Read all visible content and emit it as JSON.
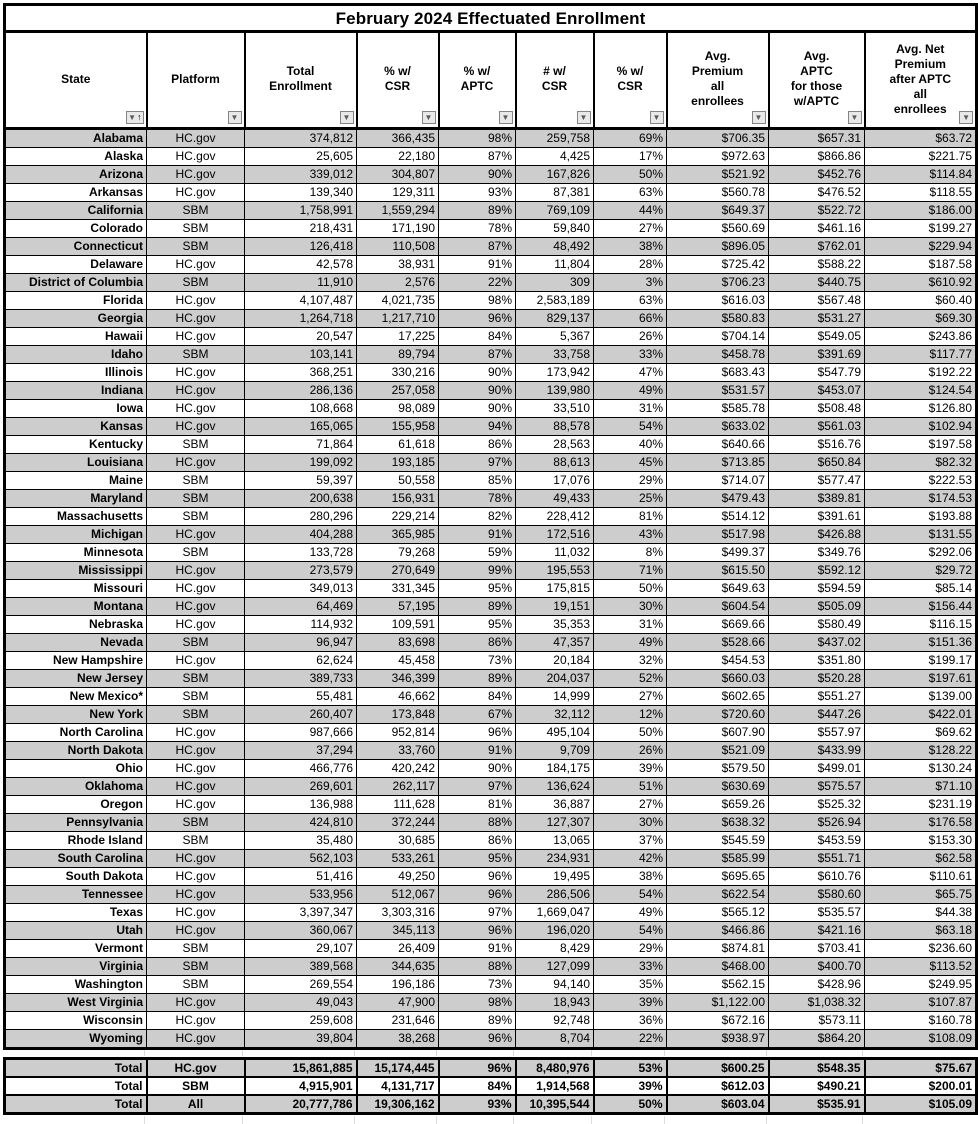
{
  "title": "February 2024 Effectuated Enrollment",
  "icons": {
    "filter_arrow": "▼",
    "sort_ascending": "↑"
  },
  "colors": {
    "row_stripe": "#cdcdcd",
    "border": "#000000",
    "filter_button_bg": "#e9e9e9"
  },
  "table": {
    "columns": [
      {
        "key": "state",
        "label": "State",
        "lines": [
          "State"
        ],
        "filter": "sort-asc"
      },
      {
        "key": "platform",
        "label": "Platform",
        "lines": [
          "Platform"
        ],
        "filter": "default"
      },
      {
        "key": "total-enrollment",
        "label": "Total Enrollment",
        "lines": [
          "Total",
          "Enrollment"
        ],
        "filter": "default"
      },
      {
        "key": "num-w-csr-a",
        "label": "% w/ CSR",
        "lines": [
          "% w/",
          "CSR"
        ],
        "filter": "default"
      },
      {
        "key": "pct-w-aptc",
        "label": "% w/ APTC",
        "lines": [
          "% w/",
          "APTC"
        ],
        "filter": "default"
      },
      {
        "key": "num-w-csr-b",
        "label": "# w/ CSR",
        "lines": [
          "# w/",
          "CSR"
        ],
        "filter": "default"
      },
      {
        "key": "pct-w-csr",
        "label": "% w/ CSR",
        "lines": [
          "% w/",
          "CSR"
        ],
        "filter": "default"
      },
      {
        "key": "avg-premium",
        "label": "Avg. Premium all enrollees",
        "lines": [
          "Avg.",
          "Premium",
          "all",
          "enrollees"
        ],
        "filter": "default"
      },
      {
        "key": "avg-aptc",
        "label": "Avg. APTC for those w/APTC",
        "lines": [
          "Avg.",
          "APTC",
          "for those",
          "w/APTC"
        ],
        "filter": "default"
      },
      {
        "key": "avg-net-premium",
        "label": "Avg. Net Premium after APTC all enrollees",
        "lines": [
          "Avg. Net",
          "Premium",
          "after APTC",
          "all",
          "enrollees"
        ],
        "filter": "default"
      }
    ],
    "rows": [
      [
        "Alabama",
        "HC.gov",
        "374,812",
        "366,435",
        "98%",
        "259,758",
        "69%",
        "$706.35",
        "$657.31",
        "$63.72"
      ],
      [
        "Alaska",
        "HC.gov",
        "25,605",
        "22,180",
        "87%",
        "4,425",
        "17%",
        "$972.63",
        "$866.86",
        "$221.75"
      ],
      [
        "Arizona",
        "HC.gov",
        "339,012",
        "304,807",
        "90%",
        "167,826",
        "50%",
        "$521.92",
        "$452.76",
        "$114.84"
      ],
      [
        "Arkansas",
        "HC.gov",
        "139,340",
        "129,311",
        "93%",
        "87,381",
        "63%",
        "$560.78",
        "$476.52",
        "$118.55"
      ],
      [
        "California",
        "SBM",
        "1,758,991",
        "1,559,294",
        "89%",
        "769,109",
        "44%",
        "$649.37",
        "$522.72",
        "$186.00"
      ],
      [
        "Colorado",
        "SBM",
        "218,431",
        "171,190",
        "78%",
        "59,840",
        "27%",
        "$560.69",
        "$461.16",
        "$199.27"
      ],
      [
        "Connecticut",
        "SBM",
        "126,418",
        "110,508",
        "87%",
        "48,492",
        "38%",
        "$896.05",
        "$762.01",
        "$229.94"
      ],
      [
        "Delaware",
        "HC.gov",
        "42,578",
        "38,931",
        "91%",
        "11,804",
        "28%",
        "$725.42",
        "$588.22",
        "$187.58"
      ],
      [
        "District of Columbia",
        "SBM",
        "11,910",
        "2,576",
        "22%",
        "309",
        "3%",
        "$706.23",
        "$440.75",
        "$610.92"
      ],
      [
        "Florida",
        "HC.gov",
        "4,107,487",
        "4,021,735",
        "98%",
        "2,583,189",
        "63%",
        "$616.03",
        "$567.48",
        "$60.40"
      ],
      [
        "Georgia",
        "HC.gov",
        "1,264,718",
        "1,217,710",
        "96%",
        "829,137",
        "66%",
        "$580.83",
        "$531.27",
        "$69.30"
      ],
      [
        "Hawaii",
        "HC.gov",
        "20,547",
        "17,225",
        "84%",
        "5,367",
        "26%",
        "$704.14",
        "$549.05",
        "$243.86"
      ],
      [
        "Idaho",
        "SBM",
        "103,141",
        "89,794",
        "87%",
        "33,758",
        "33%",
        "$458.78",
        "$391.69",
        "$117.77"
      ],
      [
        "Illinois",
        "HC.gov",
        "368,251",
        "330,216",
        "90%",
        "173,942",
        "47%",
        "$683.43",
        "$547.79",
        "$192.22"
      ],
      [
        "Indiana",
        "HC.gov",
        "286,136",
        "257,058",
        "90%",
        "139,980",
        "49%",
        "$531.57",
        "$453.07",
        "$124.54"
      ],
      [
        "Iowa",
        "HC.gov",
        "108,668",
        "98,089",
        "90%",
        "33,510",
        "31%",
        "$585.78",
        "$508.48",
        "$126.80"
      ],
      [
        "Kansas",
        "HC.gov",
        "165,065",
        "155,958",
        "94%",
        "88,578",
        "54%",
        "$633.02",
        "$561.03",
        "$102.94"
      ],
      [
        "Kentucky",
        "SBM",
        "71,864",
        "61,618",
        "86%",
        "28,563",
        "40%",
        "$640.66",
        "$516.76",
        "$197.58"
      ],
      [
        "Louisiana",
        "HC.gov",
        "199,092",
        "193,185",
        "97%",
        "88,613",
        "45%",
        "$713.85",
        "$650.84",
        "$82.32"
      ],
      [
        "Maine",
        "SBM",
        "59,397",
        "50,558",
        "85%",
        "17,076",
        "29%",
        "$714.07",
        "$577.47",
        "$222.53"
      ],
      [
        "Maryland",
        "SBM",
        "200,638",
        "156,931",
        "78%",
        "49,433",
        "25%",
        "$479.43",
        "$389.81",
        "$174.53"
      ],
      [
        "Massachusetts",
        "SBM",
        "280,296",
        "229,214",
        "82%",
        "228,412",
        "81%",
        "$514.12",
        "$391.61",
        "$193.88"
      ],
      [
        "Michigan",
        "HC.gov",
        "404,288",
        "365,985",
        "91%",
        "172,516",
        "43%",
        "$517.98",
        "$426.88",
        "$131.55"
      ],
      [
        "Minnesota",
        "SBM",
        "133,728",
        "79,268",
        "59%",
        "11,032",
        "8%",
        "$499.37",
        "$349.76",
        "$292.06"
      ],
      [
        "Mississippi",
        "HC.gov",
        "273,579",
        "270,649",
        "99%",
        "195,553",
        "71%",
        "$615.50",
        "$592.12",
        "$29.72"
      ],
      [
        "Missouri",
        "HC.gov",
        "349,013",
        "331,345",
        "95%",
        "175,815",
        "50%",
        "$649.63",
        "$594.59",
        "$85.14"
      ],
      [
        "Montana",
        "HC.gov",
        "64,469",
        "57,195",
        "89%",
        "19,151",
        "30%",
        "$604.54",
        "$505.09",
        "$156.44"
      ],
      [
        "Nebraska",
        "HC.gov",
        "114,932",
        "109,591",
        "95%",
        "35,353",
        "31%",
        "$669.66",
        "$580.49",
        "$116.15"
      ],
      [
        "Nevada",
        "SBM",
        "96,947",
        "83,698",
        "86%",
        "47,357",
        "49%",
        "$528.66",
        "$437.02",
        "$151.36"
      ],
      [
        "New Hampshire",
        "HC.gov",
        "62,624",
        "45,458",
        "73%",
        "20,184",
        "32%",
        "$454.53",
        "$351.80",
        "$199.17"
      ],
      [
        "New Jersey",
        "SBM",
        "389,733",
        "346,399",
        "89%",
        "204,037",
        "52%",
        "$660.03",
        "$520.28",
        "$197.61"
      ],
      [
        "New Mexico*",
        "SBM",
        "55,481",
        "46,662",
        "84%",
        "14,999",
        "27%",
        "$602.65",
        "$551.27",
        "$139.00"
      ],
      [
        "New York",
        "SBM",
        "260,407",
        "173,848",
        "67%",
        "32,112",
        "12%",
        "$720.60",
        "$447.26",
        "$422.01"
      ],
      [
        "North Carolina",
        "HC.gov",
        "987,666",
        "952,814",
        "96%",
        "495,104",
        "50%",
        "$607.90",
        "$557.97",
        "$69.62"
      ],
      [
        "North Dakota",
        "HC.gov",
        "37,294",
        "33,760",
        "91%",
        "9,709",
        "26%",
        "$521.09",
        "$433.99",
        "$128.22"
      ],
      [
        "Ohio",
        "HC.gov",
        "466,776",
        "420,242",
        "90%",
        "184,175",
        "39%",
        "$579.50",
        "$499.01",
        "$130.24"
      ],
      [
        "Oklahoma",
        "HC.gov",
        "269,601",
        "262,117",
        "97%",
        "136,624",
        "51%",
        "$630.69",
        "$575.57",
        "$71.10"
      ],
      [
        "Oregon",
        "HC.gov",
        "136,988",
        "111,628",
        "81%",
        "36,887",
        "27%",
        "$659.26",
        "$525.32",
        "$231.19"
      ],
      [
        "Pennsylvania",
        "SBM",
        "424,810",
        "372,244",
        "88%",
        "127,307",
        "30%",
        "$638.32",
        "$526.94",
        "$176.58"
      ],
      [
        "Rhode Island",
        "SBM",
        "35,480",
        "30,685",
        "86%",
        "13,065",
        "37%",
        "$545.59",
        "$453.59",
        "$153.30"
      ],
      [
        "South Carolina",
        "HC.gov",
        "562,103",
        "533,261",
        "95%",
        "234,931",
        "42%",
        "$585.99",
        "$551.71",
        "$62.58"
      ],
      [
        "South Dakota",
        "HC.gov",
        "51,416",
        "49,250",
        "96%",
        "19,495",
        "38%",
        "$695.65",
        "$610.76",
        "$110.61"
      ],
      [
        "Tennessee",
        "HC.gov",
        "533,956",
        "512,067",
        "96%",
        "286,506",
        "54%",
        "$622.54",
        "$580.60",
        "$65.75"
      ],
      [
        "Texas",
        "HC.gov",
        "3,397,347",
        "3,303,316",
        "97%",
        "1,669,047",
        "49%",
        "$565.12",
        "$535.57",
        "$44.38"
      ],
      [
        "Utah",
        "HC.gov",
        "360,067",
        "345,113",
        "96%",
        "196,020",
        "54%",
        "$466.86",
        "$421.16",
        "$63.18"
      ],
      [
        "Vermont",
        "SBM",
        "29,107",
        "26,409",
        "91%",
        "8,429",
        "29%",
        "$874.81",
        "$703.41",
        "$236.60"
      ],
      [
        "Virginia",
        "SBM",
        "389,568",
        "344,635",
        "88%",
        "127,099",
        "33%",
        "$468.00",
        "$400.70",
        "$113.52"
      ],
      [
        "Washington",
        "SBM",
        "269,554",
        "196,186",
        "73%",
        "94,140",
        "35%",
        "$562.15",
        "$428.96",
        "$249.95"
      ],
      [
        "West Virginia",
        "HC.gov",
        "49,043",
        "47,900",
        "98%",
        "18,943",
        "39%",
        "$1,122.00",
        "$1,038.32",
        "$107.87"
      ],
      [
        "Wisconsin",
        "HC.gov",
        "259,608",
        "231,646",
        "89%",
        "92,748",
        "36%",
        "$672.16",
        "$573.11",
        "$160.78"
      ],
      [
        "Wyoming",
        "HC.gov",
        "39,804",
        "38,268",
        "96%",
        "8,704",
        "22%",
        "$938.97",
        "$864.20",
        "$108.09"
      ]
    ],
    "totals": [
      [
        "Total",
        "HC.gov",
        "15,861,885",
        "15,174,445",
        "96%",
        "8,480,976",
        "53%",
        "$600.25",
        "$548.35",
        "$75.67"
      ],
      [
        "Total",
        "SBM",
        "4,915,901",
        "4,131,717",
        "84%",
        "1,914,568",
        "39%",
        "$612.03",
        "$490.21",
        "$200.01"
      ],
      [
        "Total",
        "All",
        "20,777,786",
        "19,306,162",
        "93%",
        "10,395,544",
        "50%",
        "$603.04",
        "$535.91",
        "$105.09"
      ]
    ]
  }
}
